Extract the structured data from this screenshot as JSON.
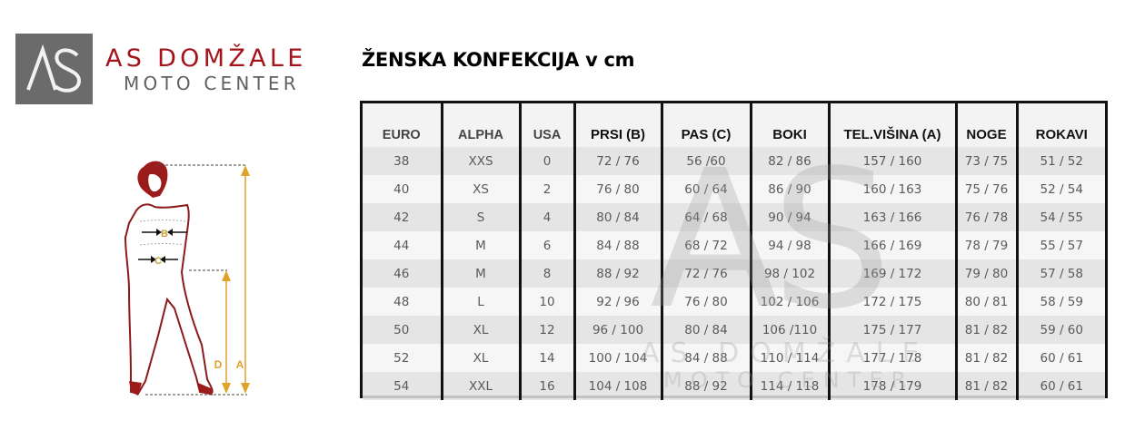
{
  "logo": {
    "mark": "AS",
    "title": "AS DOMŽALE",
    "subtitle": "MOTO CENTER",
    "brand_color": "#a3151b",
    "box_color": "#6b6b6b"
  },
  "page_title": "ŽENSKA KONFEKCIJA v cm",
  "figure": {
    "labels": {
      "bust": "B",
      "waist": "C",
      "inseam": "D",
      "height": "A"
    },
    "accent_color": "#e0a22a",
    "outline_color": "#8b1a1a"
  },
  "watermark": {
    "mark": "AS",
    "title": "AS DOMŽALE",
    "subtitle": "MOTO CENTER"
  },
  "table": {
    "headers": [
      "EURO",
      "ALPHA",
      "USA",
      "PRSI (B)",
      "PAS (C)",
      "BOKI",
      "TEL.VIŠINA (A)",
      "NOGE",
      "ROKAVI"
    ],
    "rows": [
      [
        "38",
        "XXS",
        "0",
        "72 / 76",
        "56 /60",
        "82 / 86",
        "157 / 160",
        "73 / 75",
        "51 / 52"
      ],
      [
        "40",
        "XS",
        "2",
        "76 / 80",
        "60 / 64",
        "86 / 90",
        "160 / 163",
        "75 / 76",
        "52 / 54"
      ],
      [
        "42",
        "S",
        "4",
        "80 / 84",
        "64 / 68",
        "90 / 94",
        "163 / 166",
        "76 / 78",
        "54 / 55"
      ],
      [
        "44",
        "M",
        "6",
        "84 / 88",
        "68 / 72",
        "94 / 98",
        "166 / 169",
        "78 / 79",
        "55 / 57"
      ],
      [
        "46",
        "M",
        "8",
        "88 / 92",
        "72 / 76",
        "98 / 102",
        "169 / 172",
        "79 / 80",
        "57 / 58"
      ],
      [
        "48",
        "L",
        "10",
        "92 / 96",
        "76 / 80",
        "102 / 106",
        "172 / 175",
        "80 / 81",
        "58 / 59"
      ],
      [
        "50",
        "XL",
        "12",
        "96 / 100",
        "80 / 84",
        "106 /110",
        "175 / 177",
        "81 / 82",
        "59 / 60"
      ],
      [
        "52",
        "XL",
        "14",
        "100 / 104",
        "84 / 88",
        "110 / 114",
        "177 / 178",
        "81 / 82",
        "60 / 61"
      ],
      [
        "54",
        "XXL",
        "16",
        "104 / 108",
        "88 / 92",
        "114 / 118",
        "178 / 179",
        "81 / 82",
        "60 / 61"
      ]
    ]
  }
}
